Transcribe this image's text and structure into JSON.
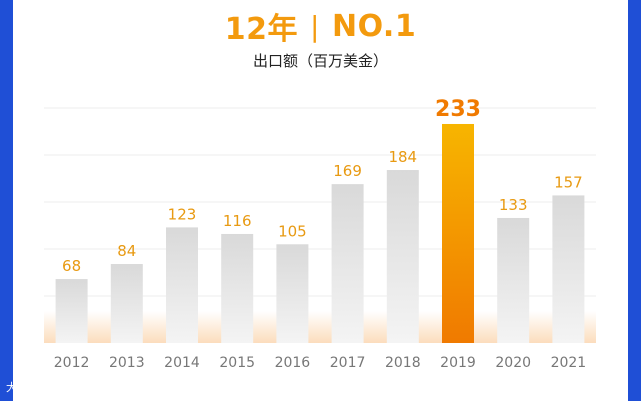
{
  "header": {
    "title_left": "12年",
    "title_right": "NO.1",
    "subtitle": "出口额（百万美金）"
  },
  "watermark": "大数据报",
  "colors": {
    "side_bar": "#1F4FD6",
    "title": "#F39A0E",
    "separator": "#F39A0E",
    "bar_normal_top": "#D9D9D9",
    "bar_normal_bottom": "#F4F4F4",
    "bar_highlight_top": "#F7B500",
    "bar_highlight_bottom": "#F07A00",
    "value_label": "#E89A12",
    "axis_label": "#777777",
    "grid": "#EEEEEE",
    "glow": "#FBD9B5"
  },
  "chart_data": {
    "type": "bar",
    "title": "",
    "xlabel": "",
    "ylabel": "",
    "categories": [
      "2012",
      "2013",
      "2014",
      "2015",
      "2016",
      "2017",
      "2018",
      "2019",
      "2020",
      "2021"
    ],
    "values": [
      68,
      84,
      123,
      116,
      105,
      169,
      184,
      233,
      133,
      157
    ],
    "highlight_category": "2019",
    "ylim": [
      0,
      250
    ],
    "grid": true,
    "legend": "none"
  }
}
